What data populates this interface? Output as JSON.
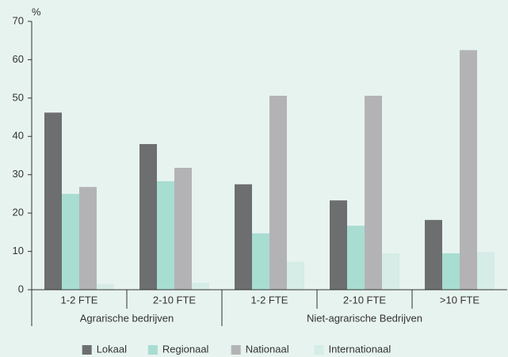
{
  "chart_data": {
    "type": "bar",
    "y_label": "%",
    "categories": [
      "1-2 FTE",
      "2-10 FTE",
      "1-2 FTE",
      "2-10 FTE",
      ">10 FTE"
    ],
    "category_groups": [
      "Agrarische bedrijven",
      "Agrarische bedrijven",
      "Niet-agrarische Bedrijven",
      "Niet-agrarische Bedrijven",
      "Niet-agrarische Bedrijven"
    ],
    "series": [
      {
        "name": "Lokaal",
        "color": "#6d6e70",
        "values": [
          46.2,
          38,
          27.5,
          23.3,
          18.2
        ]
      },
      {
        "name": "Regionaal",
        "color": "#a8ddd2",
        "values": [
          25,
          28.3,
          14.7,
          16.7,
          9.5
        ]
      },
      {
        "name": "Nationaal",
        "color": "#b3b3b5",
        "values": [
          26.8,
          31.8,
          50.6,
          50.6,
          62.5
        ]
      },
      {
        "name": "Internationaal",
        "color": "#d5ece7",
        "values": [
          1.5,
          1.8,
          7.3,
          9.5,
          9.8
        ]
      }
    ],
    "ylim": [
      0,
      70
    ],
    "yticks": [
      0,
      10,
      20,
      30,
      40,
      50,
      60,
      70
    ],
    "grid": false,
    "legend": "bottom"
  }
}
